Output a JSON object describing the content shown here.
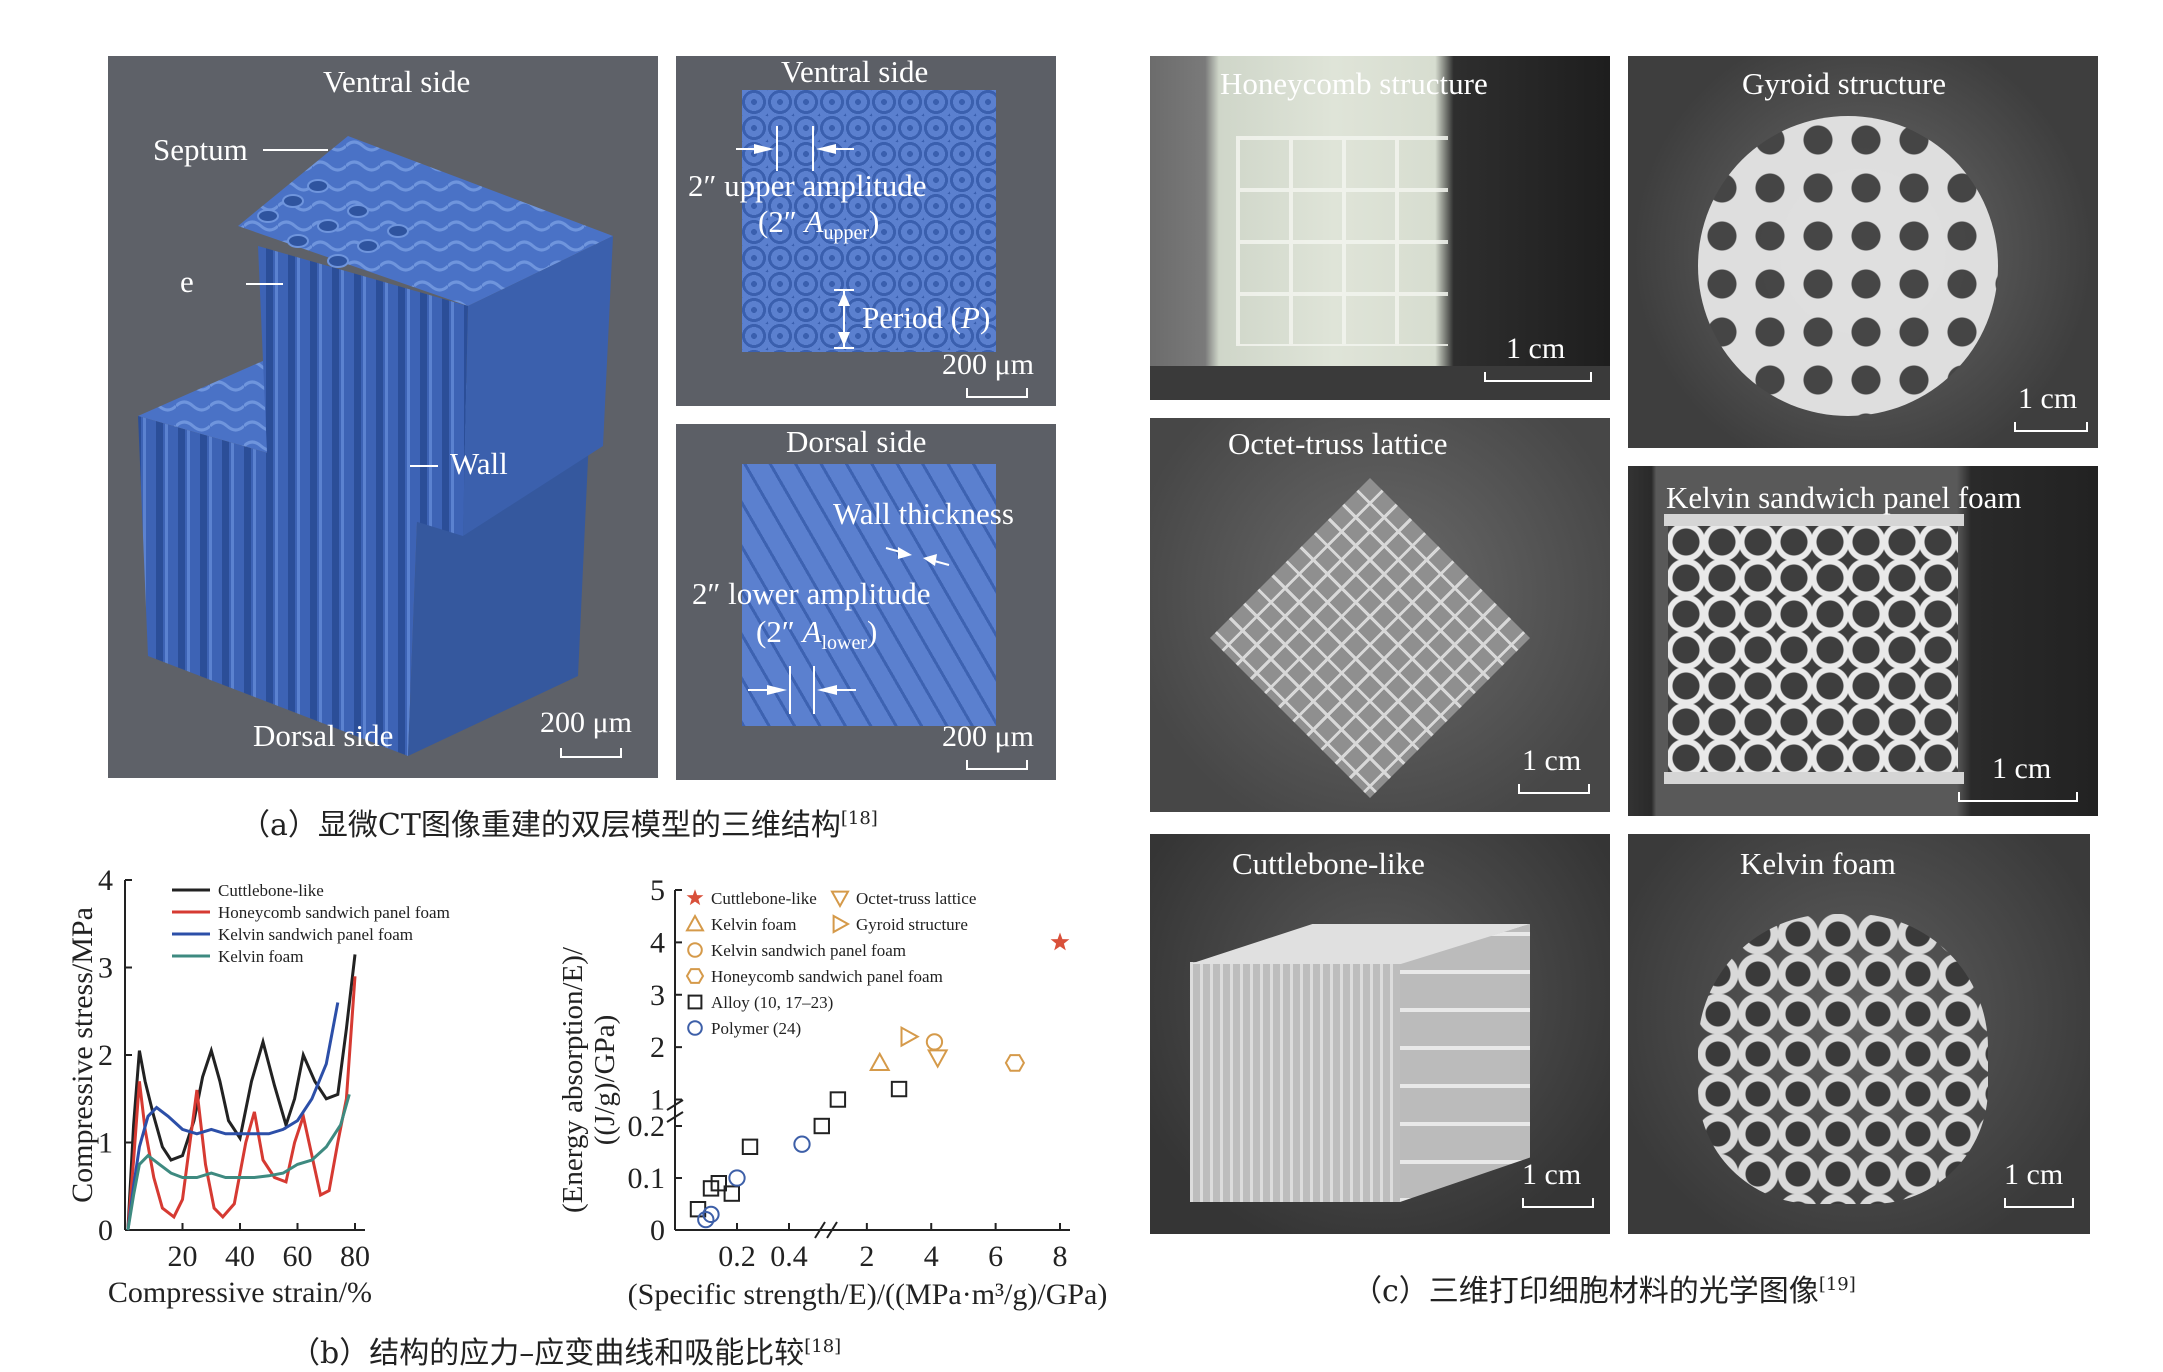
{
  "panel_a": {
    "main": {
      "top": "Ventral side",
      "septum": "Septum",
      "e": "e",
      "wall": "Wall",
      "bottom": "Dorsal side",
      "scale": "200 μm"
    },
    "ventral": {
      "title": "Ventral side",
      "amp1": "2″ upper amplitude",
      "amp2_pre": "(2″ ",
      "amp2_A": "A",
      "amp2_sub": "upper",
      "amp2_post": ")",
      "period_pre": "Period (",
      "period_P": "P",
      "period_post": ")",
      "scale": "200 μm"
    },
    "dorsal": {
      "title": "Dorsal side",
      "wall": "Wall thickness",
      "amp1": "2″ lower amplitude",
      "amp2_pre": "(2″ ",
      "amp2_A": "A",
      "amp2_sub": "lower",
      "amp2_post": ")",
      "scale": "200 μm"
    },
    "caption": "（a）显微CT图像重建的双层模型的三维结构",
    "caption_ref": "[18]"
  },
  "panel_b": {
    "caption": "（b）结构的应力–应变曲线和吸能比较",
    "caption_ref": "[18]",
    "charts": [
      {
        "type": "line",
        "xlabel": "Compressive strain/%",
        "ylabel": "Compressive stress/MPa",
        "xticks": [
          "20",
          "40",
          "60",
          "80"
        ],
        "yticks": [
          "0",
          "1",
          "2",
          "3",
          "4"
        ],
        "xlim": [
          0,
          80
        ],
        "ylim": [
          0,
          4
        ],
        "series": [
          {
            "name": "Cuttlebone-like",
            "color": "#222222",
            "points": [
              [
                1,
                0
              ],
              [
                3,
                1.2
              ],
              [
                5,
                2.05
              ],
              [
                7,
                1.7
              ],
              [
                10,
                1.3
              ],
              [
                13,
                0.95
              ],
              [
                16,
                0.8
              ],
              [
                20,
                0.85
              ],
              [
                24,
                1.25
              ],
              [
                27,
                1.75
              ],
              [
                30,
                2.05
              ],
              [
                33,
                1.7
              ],
              [
                36,
                1.25
              ],
              [
                40,
                1.05
              ],
              [
                44,
                1.7
              ],
              [
                48,
                2.15
              ],
              [
                52,
                1.65
              ],
              [
                56,
                1.2
              ],
              [
                59,
                1.5
              ],
              [
                62,
                2.0
              ],
              [
                66,
                1.7
              ],
              [
                70,
                1.5
              ],
              [
                74,
                1.55
              ],
              [
                77,
                2.3
              ],
              [
                80,
                3.15
              ]
            ]
          },
          {
            "name": "Honeycomb sandwich panel foam",
            "color": "#d63a32",
            "points": [
              [
                1,
                0
              ],
              [
                3,
                0.8
              ],
              [
                5,
                1.7
              ],
              [
                7,
                1.15
              ],
              [
                10,
                0.6
              ],
              [
                13,
                0.25
              ],
              [
                17,
                0.15
              ],
              [
                20,
                0.35
              ],
              [
                23,
                1.1
              ],
              [
                25,
                1.6
              ],
              [
                28,
                0.75
              ],
              [
                31,
                0.25
              ],
              [
                34,
                0.15
              ],
              [
                38,
                0.3
              ],
              [
                42,
                1.0
              ],
              [
                45,
                1.35
              ],
              [
                48,
                0.8
              ],
              [
                52,
                0.6
              ],
              [
                56,
                0.55
              ],
              [
                59,
                1.0
              ],
              [
                62,
                1.3
              ],
              [
                65,
                0.85
              ],
              [
                68,
                0.4
              ],
              [
                71,
                0.45
              ],
              [
                74,
                1.0
              ],
              [
                77,
                1.5
              ],
              [
                80,
                2.9
              ]
            ]
          },
          {
            "name": "Kelvin sandwich panel foam",
            "color": "#2c4fa8",
            "points": [
              [
                1,
                0
              ],
              [
                3,
                0.5
              ],
              [
                5,
                0.95
              ],
              [
                8,
                1.3
              ],
              [
                11,
                1.4
              ],
              [
                15,
                1.3
              ],
              [
                20,
                1.15
              ],
              [
                25,
                1.1
              ],
              [
                30,
                1.15
              ],
              [
                35,
                1.1
              ],
              [
                40,
                1.1
              ],
              [
                45,
                1.1
              ],
              [
                50,
                1.1
              ],
              [
                55,
                1.15
              ],
              [
                60,
                1.25
              ],
              [
                65,
                1.5
              ],
              [
                70,
                1.9
              ],
              [
                74,
                2.6
              ]
            ]
          },
          {
            "name": "Kelvin foam",
            "color": "#3e8a80",
            "points": [
              [
                1,
                0
              ],
              [
                3,
                0.4
              ],
              [
                5,
                0.75
              ],
              [
                8,
                0.85
              ],
              [
                12,
                0.75
              ],
              [
                16,
                0.65
              ],
              [
                20,
                0.6
              ],
              [
                25,
                0.6
              ],
              [
                30,
                0.65
              ],
              [
                35,
                0.6
              ],
              [
                40,
                0.6
              ],
              [
                45,
                0.6
              ],
              [
                50,
                0.62
              ],
              [
                55,
                0.65
              ],
              [
                60,
                0.75
              ],
              [
                65,
                0.8
              ],
              [
                70,
                0.95
              ],
              [
                75,
                1.2
              ],
              [
                78,
                1.55
              ]
            ]
          }
        ]
      },
      {
        "type": "scatter",
        "xlabel": "(Specific strength/E)/((MPa·m³/g)/GPa)",
        "ylabel_l1": "(Energy absorption/E)/",
        "ylabel_l2": "((J/g)/GPa)",
        "xticks_low": [
          "0.2",
          "0.4"
        ],
        "xticks_high": [
          "2",
          "4",
          "6",
          "8"
        ],
        "yticks_low": [
          "0",
          "0.1",
          "0.2"
        ],
        "yticks_high": [
          "1",
          "2",
          "3",
          "4",
          "5"
        ],
        "series": [
          {
            "name": "Cuttlebone-like",
            "marker": "star",
            "color": "#d9503a",
            "points": [
              [
                8,
                4
              ]
            ]
          },
          {
            "name": "Octet-truss lattice",
            "marker": "tri-down",
            "color": "#d59a4a",
            "points": [
              [
                4.2,
                1.8
              ]
            ]
          },
          {
            "name": "Kelvin foam",
            "marker": "tri-up",
            "color": "#d59a4a",
            "points": [
              [
                2.4,
                1.7
              ]
            ]
          },
          {
            "name": "Gyroid structure",
            "marker": "tri-right",
            "color": "#d59a4a",
            "points": [
              [
                3.3,
                2.2
              ]
            ]
          },
          {
            "name": "Kelvin sandwich panel foam",
            "marker": "circle",
            "color": "#d59a4a",
            "points": [
              [
                4.1,
                2.1
              ]
            ]
          },
          {
            "name": "Honeycomb sandwich panel foam",
            "marker": "hexagon",
            "color": "#d59a4a",
            "points": [
              [
                6.6,
                1.7
              ]
            ]
          },
          {
            "name": "Alloy (10, 17–23)",
            "marker": "square",
            "color": "#222222",
            "points": [
              [
                0.05,
                0.04
              ],
              [
                0.1,
                0.08
              ],
              [
                0.13,
                0.09
              ],
              [
                0.18,
                0.07
              ],
              [
                0.25,
                0.16
              ],
              [
                0.6,
                0.2
              ],
              [
                1.1,
                1.0
              ],
              [
                3.0,
                1.2
              ]
            ]
          },
          {
            "name": "Polymer (24)",
            "marker": "circle-open",
            "color": "#3d5fa8",
            "points": [
              [
                0.08,
                0.02
              ],
              [
                0.1,
                0.03
              ],
              [
                0.2,
                0.1
              ],
              [
                0.45,
                0.165
              ]
            ]
          }
        ]
      }
    ]
  },
  "panel_c": {
    "photos": [
      {
        "title": "Honeycomb structure",
        "scale": "1 cm"
      },
      {
        "title": "Gyroid structure",
        "scale": "1 cm"
      },
      {
        "title": "Octet-truss lattice",
        "scale": "1 cm"
      },
      {
        "title": "Kelvin sandwich panel foam",
        "scale": "1 cm"
      },
      {
        "title": "Cuttlebone-like",
        "scale": "1 cm"
      },
      {
        "title": "Kelvin foam",
        "scale": "1 cm"
      }
    ],
    "caption": "（c）三维打印细胞材料的光学图像",
    "caption_ref": "[19]"
  }
}
